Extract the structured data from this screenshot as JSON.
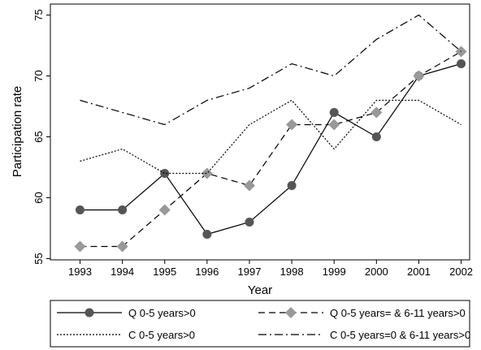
{
  "chart_data": {
    "type": "line",
    "x": [
      1993,
      1994,
      1995,
      1996,
      1997,
      1998,
      1999,
      2000,
      2001,
      2002
    ],
    "xlim": [
      1992.3,
      2002.2
    ],
    "xticks": [
      1993,
      1994,
      1995,
      1996,
      1997,
      1998,
      1999,
      2000,
      2001,
      2002
    ],
    "ylim": [
      54.9,
      75.9
    ],
    "yticks": [
      55,
      60,
      65,
      70,
      75
    ],
    "x_label": "Year",
    "y_label": "Participation rate",
    "series": [
      {
        "name": "Q 0-5 years>0",
        "color": "#000000",
        "marker": "circle",
        "marker_color": "#555555",
        "dash": "solid",
        "values": [
          59,
          59,
          62,
          57,
          58,
          61,
          67,
          65,
          70,
          71
        ]
      },
      {
        "name": "Q 0-5 years= & 6-11 years>0",
        "color": "#000000",
        "marker": "diamond",
        "marker_color": "#999999",
        "dash": "dashed",
        "values": [
          56,
          56,
          59,
          62,
          61,
          66,
          66,
          67,
          70,
          72
        ]
      },
      {
        "name": "C 0-5 years>0",
        "color": "#000000",
        "dash": "dotted",
        "values": [
          63,
          64,
          62,
          62,
          66,
          68,
          64,
          68,
          68,
          66
        ]
      },
      {
        "name": "C 0-5 years=0 & 6-11 years>0",
        "color": "#000000",
        "dash": "dashdot",
        "values": [
          68,
          67,
          66,
          68,
          69,
          71,
          70,
          73,
          75,
          72
        ]
      }
    ]
  }
}
